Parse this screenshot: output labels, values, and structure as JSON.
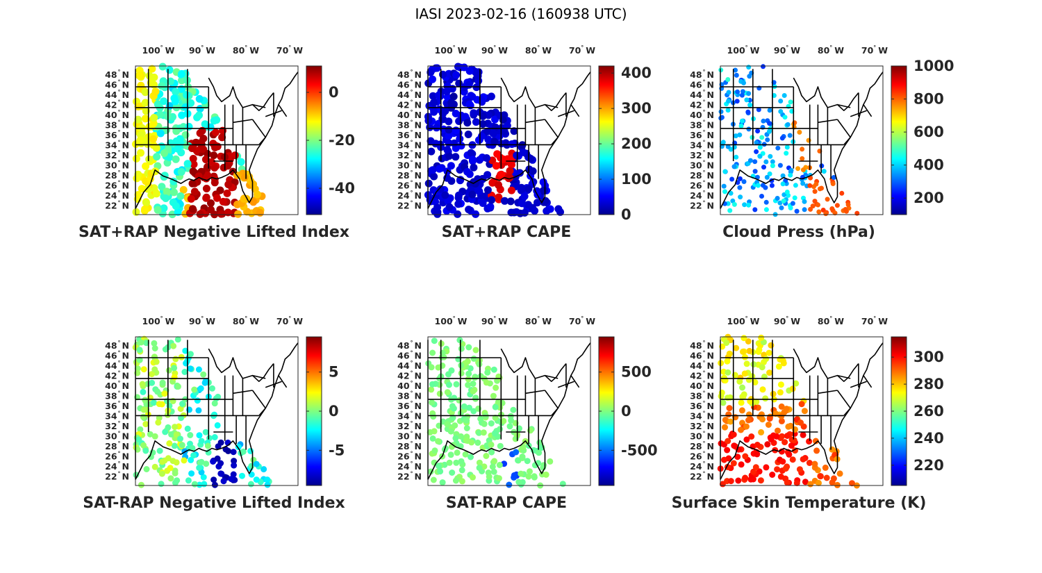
{
  "figure": {
    "title": "IASI 2023-02-16 (160938 UTC)",
    "lon_ticks": [
      "100",
      "90",
      "80",
      "70"
    ],
    "lat_ticks": [
      "48",
      "46",
      "44",
      "42",
      "40",
      "38",
      "36",
      "34",
      "32",
      "30",
      "28",
      "26",
      "24",
      "22"
    ],
    "lon_hemisphere": "W",
    "lat_hemisphere": "N",
    "degree_symbol": "°",
    "colormap": "jet"
  },
  "panels": [
    {
      "id": "nli",
      "label": "SAT+RAP Negative Lifted Index",
      "colorbar_ticks": [
        0,
        -20,
        -40
      ],
      "colorbar_range": [
        -51,
        11
      ],
      "pattern": "nli_full"
    },
    {
      "id": "cape",
      "label": "SAT+RAP CAPE",
      "colorbar_ticks": [
        400,
        300,
        200,
        100,
        0
      ],
      "colorbar_range": [
        0,
        420
      ],
      "pattern": "cape_full"
    },
    {
      "id": "cloud",
      "label": "Cloud Press (hPa)",
      "colorbar_ticks": [
        1000,
        800,
        600,
        400,
        200
      ],
      "colorbar_range": [
        100,
        1000
      ],
      "pattern": "cloud"
    },
    {
      "id": "dnli",
      "label": "SAT-RAP Negative Lifted Index",
      "colorbar_ticks": [
        5,
        0,
        -5
      ],
      "colorbar_range": [
        -9.5,
        9.5
      ],
      "pattern": "dnli"
    },
    {
      "id": "dcape",
      "label": "SAT-RAP CAPE",
      "colorbar_ticks": [
        500,
        0,
        -500
      ],
      "colorbar_range": [
        -950,
        950
      ],
      "pattern": "dcape"
    },
    {
      "id": "skin",
      "label": "Surface Skin Temperature (K)",
      "colorbar_ticks": [
        300,
        280,
        260,
        240,
        220
      ],
      "colorbar_range": [
        205,
        315
      ],
      "pattern": "skin"
    }
  ]
}
